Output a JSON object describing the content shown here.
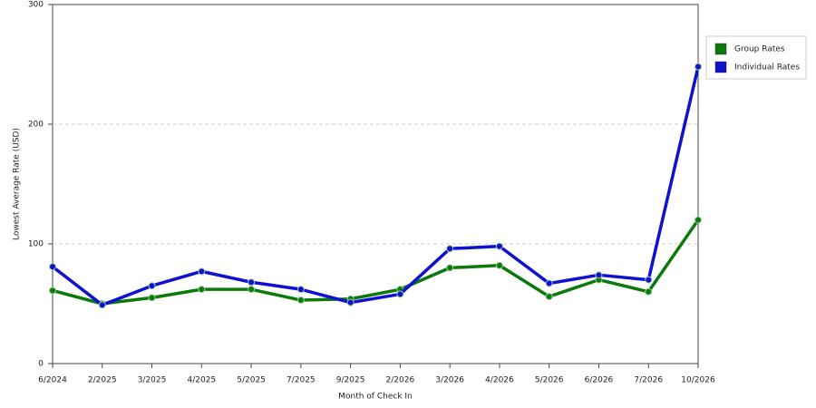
{
  "chart_data": {
    "type": "line",
    "x_label": "Month of Check In",
    "y_label": "Lowest Average Rate (USD)",
    "categories": [
      "6/2024",
      "2/2025",
      "3/2025",
      "4/2025",
      "5/2025",
      "7/2025",
      "9/2025",
      "2/2026",
      "3/2026",
      "4/2026",
      "5/2026",
      "6/2026",
      "7/2026",
      "10/2026"
    ],
    "series": [
      {
        "name": "Group Rates",
        "color": "#0a7a0a",
        "values": [
          61,
          50,
          55,
          62,
          62,
          53,
          54,
          62,
          80,
          82,
          56,
          70,
          60,
          120
        ]
      },
      {
        "name": "Individual Rates",
        "color": "#1010d0",
        "values": [
          81,
          49,
          65,
          77,
          68,
          62,
          51,
          58,
          96,
          98,
          67,
          74,
          70,
          248
        ]
      }
    ],
    "ylim": [
      0,
      300
    ],
    "yticks": [
      0,
      100,
      200,
      300
    ],
    "grid": true,
    "legend": "right"
  }
}
